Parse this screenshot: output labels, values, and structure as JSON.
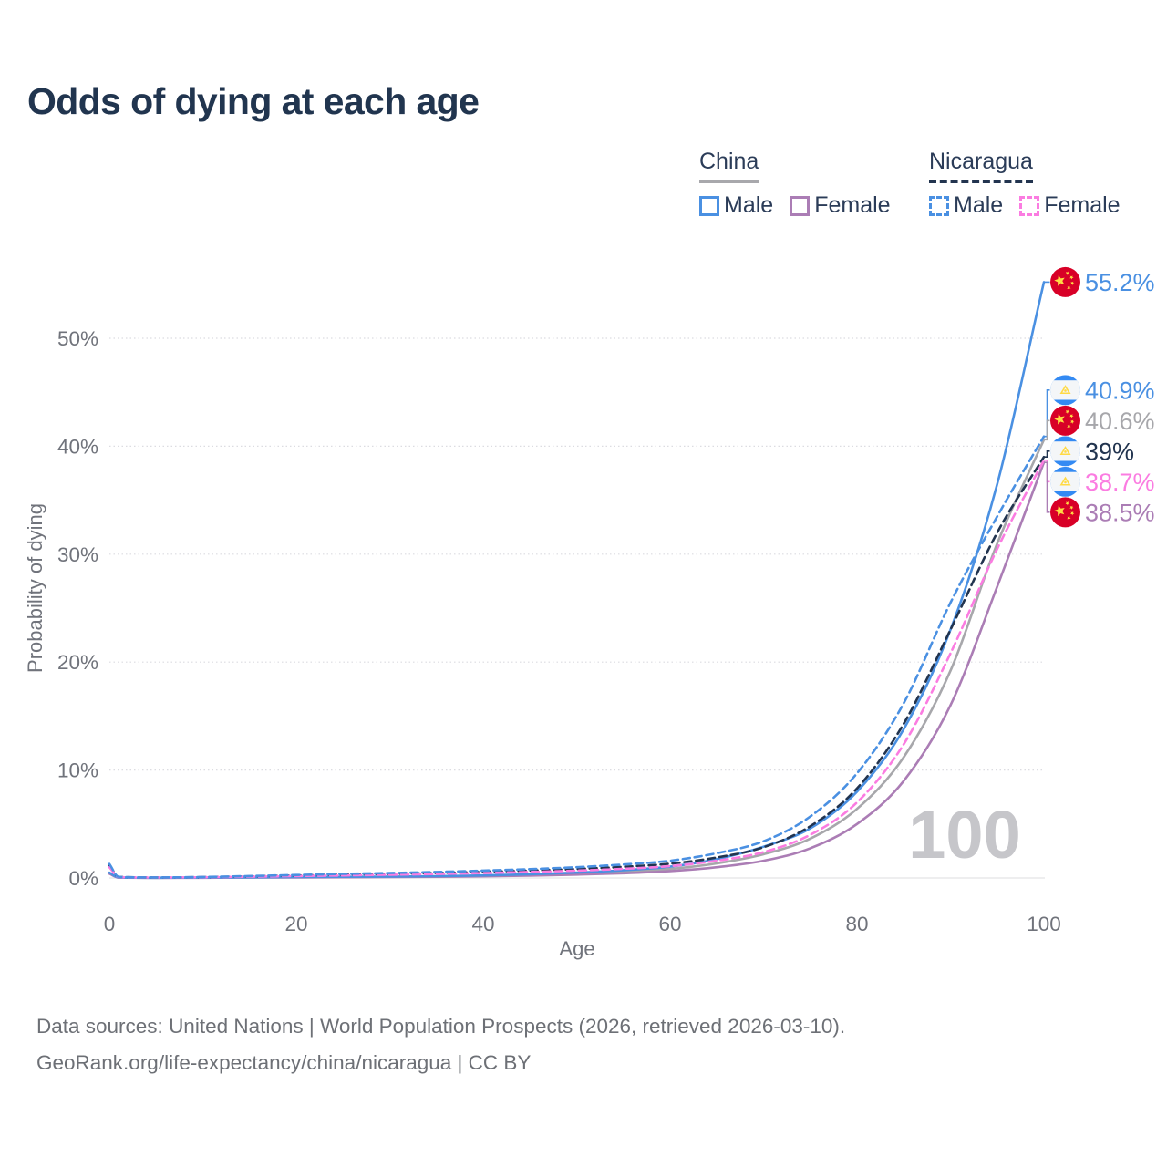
{
  "title": "Odds of dying at each age",
  "legend": {
    "china": {
      "label": "China",
      "male": "Male",
      "female": "Female"
    },
    "nicaragua": {
      "label": "Nicaragua",
      "male": "Male",
      "female": "Female"
    }
  },
  "axes": {
    "y_title": "Probability of dying",
    "y_ticks": [
      "0%",
      "10%",
      "20%",
      "30%",
      "40%",
      "50%"
    ],
    "x_title": "Age",
    "x_ticks": [
      "0",
      "20",
      "40",
      "60",
      "80",
      "100"
    ]
  },
  "watermark": "100",
  "footer": {
    "line1": "Data sources: United Nations | World Population Prospects (2026, retrieved 2026-03-10).",
    "line2": "GeoRank.org/life-expectancy/china/nicaragua | CC BY"
  },
  "colors": {
    "title_text": "#21354f",
    "axis_text": "#70737b",
    "gridline": "#dcdce1",
    "zero_line": "#e8e8ea",
    "watermark": "#c6c6ca",
    "male_blue": "#4a90e2",
    "china_female_purple": "#ab7db5",
    "china_total_gray": "#a7a7ab",
    "nicaragua_total_navy": "#22344f",
    "nicaragua_female_pink": "#fb7ce1",
    "china_flag_red": "#d80027",
    "flag_yellow": "#ffda44",
    "nicaragua_flag_blue": "#338af3"
  },
  "chart_data": {
    "type": "line",
    "title": "Odds of dying at each age",
    "xlabel": "Age",
    "ylabel": "Probability of dying",
    "xlim": [
      0,
      100
    ],
    "ylim": [
      0,
      55.2
    ],
    "grid": true,
    "legend_position": "top-right",
    "x": [
      0,
      1,
      5,
      10,
      15,
      20,
      25,
      30,
      35,
      40,
      45,
      50,
      55,
      60,
      65,
      70,
      75,
      80,
      85,
      90,
      95,
      100
    ],
    "series": [
      {
        "id": "china-total",
        "country": "China",
        "sex": "Both",
        "flag": "china",
        "style": "solid",
        "color": "#a7a7ab",
        "end_label": "40.6%",
        "end_value": 40.6,
        "values": [
          0.45,
          0.04,
          0.02,
          0.03,
          0.05,
          0.07,
          0.09,
          0.11,
          0.14,
          0.2,
          0.28,
          0.4,
          0.57,
          0.83,
          1.35,
          2.2,
          3.65,
          6.4,
          11.2,
          19.2,
          31.0,
          40.6
        ]
      },
      {
        "id": "china-female",
        "country": "China",
        "sex": "Female",
        "flag": "china",
        "style": "solid",
        "color": "#ab7db5",
        "end_label": "38.5%",
        "end_value": 38.5,
        "values": [
          0.4,
          0.03,
          0.02,
          0.02,
          0.04,
          0.05,
          0.07,
          0.09,
          0.11,
          0.15,
          0.22,
          0.31,
          0.44,
          0.63,
          1.0,
          1.6,
          2.75,
          5.0,
          9.0,
          16.0,
          27.0,
          38.5
        ]
      },
      {
        "id": "china-male",
        "country": "China",
        "sex": "Male",
        "flag": "china",
        "style": "solid",
        "color": "#4a90e2",
        "end_label": "55.2%",
        "end_value": 55.2,
        "values": [
          0.5,
          0.04,
          0.02,
          0.03,
          0.06,
          0.09,
          0.11,
          0.13,
          0.17,
          0.24,
          0.35,
          0.5,
          0.72,
          1.05,
          1.75,
          2.9,
          4.6,
          8.0,
          13.8,
          23.0,
          36.5,
          55.2
        ]
      },
      {
        "id": "nicaragua-total",
        "country": "Nicaragua",
        "sex": "Both",
        "flag": "nicaragua",
        "style": "dashed",
        "color": "#22344f",
        "end_label": "39%",
        "end_value": 39.0,
        "values": [
          1.15,
          0.09,
          0.05,
          0.08,
          0.15,
          0.23,
          0.31,
          0.38,
          0.46,
          0.57,
          0.68,
          0.83,
          1.03,
          1.33,
          1.9,
          2.85,
          4.8,
          8.3,
          14.3,
          23.0,
          32.0,
          39.0
        ]
      },
      {
        "id": "nicaragua-female",
        "country": "Nicaragua",
        "sex": "Female",
        "flag": "nicaragua",
        "style": "dashed",
        "color": "#fb7ce1",
        "end_label": "38.7%",
        "end_value": 38.7,
        "values": [
          1.0,
          0.08,
          0.04,
          0.07,
          0.12,
          0.18,
          0.24,
          0.3,
          0.37,
          0.46,
          0.56,
          0.68,
          0.85,
          1.1,
          1.6,
          2.4,
          4.0,
          7.0,
          12.4,
          20.8,
          30.5,
          38.7
        ]
      },
      {
        "id": "nicaragua-male",
        "country": "Nicaragua",
        "sex": "Male",
        "flag": "nicaragua",
        "style": "dashed",
        "color": "#4a90e2",
        "end_label": "40.9%",
        "end_value": 40.9,
        "values": [
          1.3,
          0.1,
          0.05,
          0.09,
          0.18,
          0.28,
          0.38,
          0.46,
          0.56,
          0.68,
          0.82,
          1.0,
          1.25,
          1.6,
          2.3,
          3.4,
          5.7,
          9.7,
          16.2,
          25.5,
          33.5,
          40.9
        ]
      }
    ]
  }
}
